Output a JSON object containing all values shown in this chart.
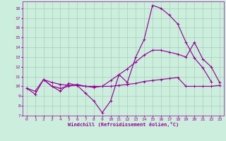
{
  "xlabel": "Windchill (Refroidissement éolien,°C)",
  "bg_color": "#cceedd",
  "grid_color": "#aaccbb",
  "line_color": "#990099",
  "xlim": [
    -0.5,
    23.5
  ],
  "ylim": [
    7,
    18.7
  ],
  "yticks": [
    7,
    8,
    9,
    10,
    11,
    12,
    13,
    14,
    15,
    16,
    17,
    18
  ],
  "xticks": [
    0,
    1,
    2,
    3,
    4,
    5,
    6,
    7,
    8,
    9,
    10,
    11,
    12,
    13,
    14,
    15,
    16,
    17,
    18,
    19,
    20,
    21,
    22,
    23
  ],
  "line1_x": [
    0,
    1,
    2,
    3,
    4,
    5,
    6,
    7,
    8,
    9,
    10,
    11,
    12,
    13,
    14,
    15,
    16,
    17,
    18,
    19,
    20,
    21,
    22,
    23
  ],
  "line1_y": [
    9.8,
    9.2,
    10.7,
    10.0,
    9.5,
    10.3,
    10.1,
    9.3,
    8.5,
    7.3,
    8.5,
    11.2,
    10.4,
    13.0,
    14.8,
    18.3,
    18.0,
    17.3,
    16.4,
    14.5,
    12.9,
    11.9,
    10.5,
    null
  ],
  "line2_x": [
    0,
    1,
    2,
    3,
    4,
    5,
    6,
    7,
    8,
    9,
    10,
    11,
    12,
    13,
    14,
    15,
    16,
    17,
    18,
    19,
    20,
    21,
    22,
    23
  ],
  "line2_y": [
    9.8,
    9.5,
    10.7,
    10.0,
    9.8,
    10.0,
    10.2,
    10.0,
    9.9,
    10.0,
    10.6,
    11.2,
    11.8,
    12.5,
    13.2,
    13.7,
    13.7,
    13.5,
    13.3,
    13.0,
    14.5,
    12.8,
    12.0,
    10.4
  ],
  "line3_x": [
    2,
    3,
    4,
    5,
    6,
    7,
    8,
    9,
    10,
    11,
    12,
    13,
    14,
    15,
    16,
    17,
    18,
    19,
    20,
    21,
    22,
    23
  ],
  "line3_y": [
    10.7,
    10.4,
    10.2,
    10.1,
    10.1,
    10.0,
    10.0,
    10.0,
    10.0,
    10.1,
    10.2,
    10.3,
    10.5,
    10.6,
    10.7,
    10.8,
    10.9,
    10.0,
    10.0,
    10.0,
    10.0,
    10.1
  ]
}
